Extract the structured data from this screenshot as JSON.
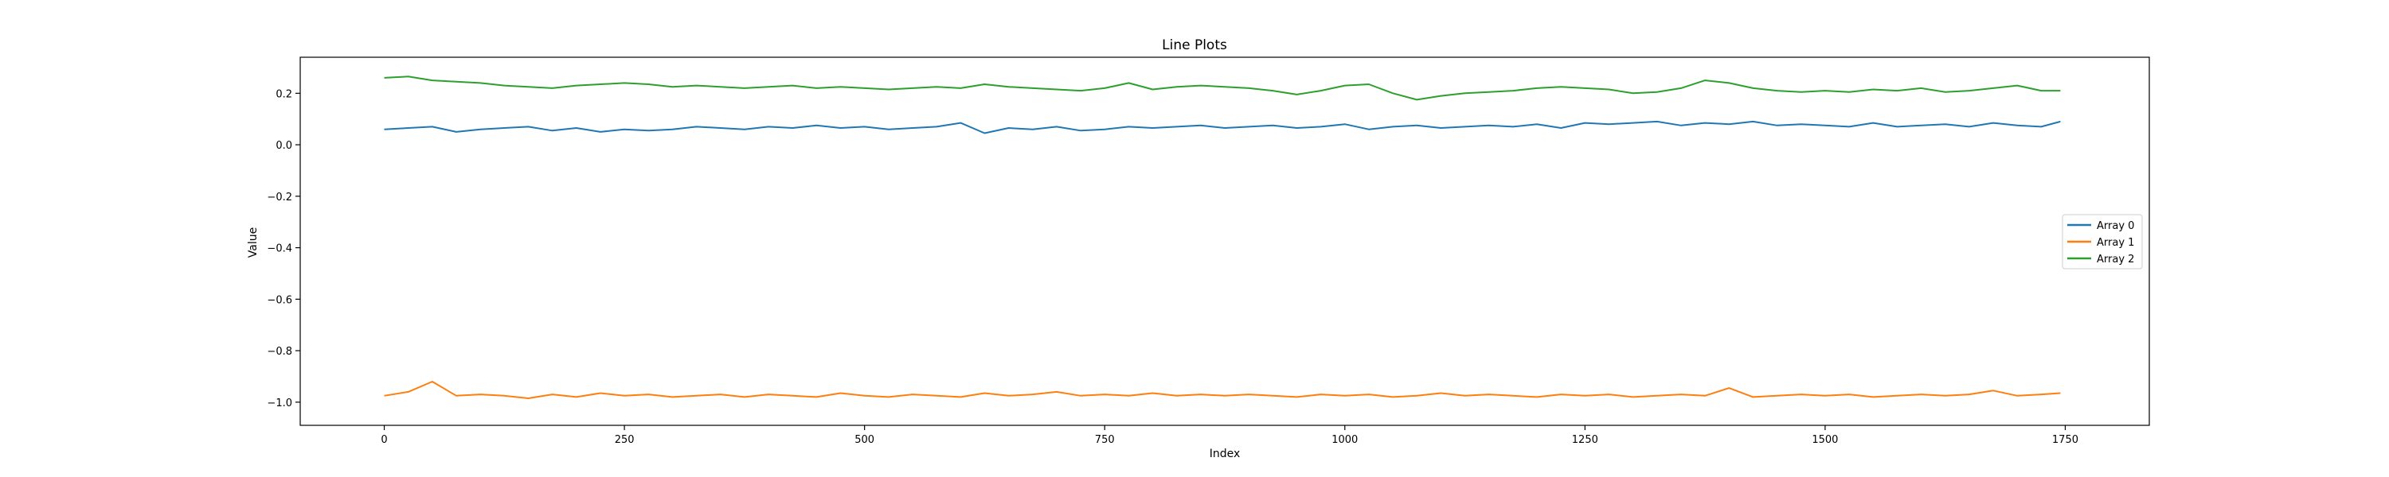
{
  "chart_data": {
    "type": "line",
    "title": "Line Plots",
    "xlabel": "Index",
    "ylabel": "Value",
    "xlim": [
      -87.5,
      1837.5
    ],
    "ylim": [
      -1.09,
      0.34
    ],
    "x_ticks": [
      0,
      250,
      500,
      750,
      1000,
      1250,
      1500,
      1750
    ],
    "y_ticks": [
      -1.0,
      -0.8,
      -0.6,
      -0.4,
      -0.2,
      0.0,
      0.2
    ],
    "grid": false,
    "legend_position": "center-right",
    "x": [
      0,
      25,
      50,
      75,
      100,
      125,
      150,
      175,
      200,
      225,
      250,
      275,
      300,
      325,
      350,
      375,
      400,
      425,
      450,
      475,
      500,
      525,
      550,
      575,
      600,
      625,
      650,
      675,
      700,
      725,
      750,
      775,
      800,
      825,
      850,
      875,
      900,
      925,
      950,
      975,
      1000,
      1025,
      1050,
      1075,
      1100,
      1125,
      1150,
      1175,
      1200,
      1225,
      1250,
      1275,
      1300,
      1325,
      1350,
      1375,
      1400,
      1425,
      1450,
      1475,
      1500,
      1525,
      1550,
      1575,
      1600,
      1625,
      1650,
      1675,
      1700,
      1725,
      1745
    ],
    "series": [
      {
        "name": "Array 0",
        "color": "#1f77b4",
        "values": [
          0.06,
          0.065,
          0.07,
          0.05,
          0.06,
          0.065,
          0.07,
          0.055,
          0.065,
          0.05,
          0.06,
          0.055,
          0.06,
          0.07,
          0.065,
          0.06,
          0.07,
          0.065,
          0.075,
          0.065,
          0.07,
          0.06,
          0.065,
          0.07,
          0.085,
          0.045,
          0.065,
          0.06,
          0.07,
          0.055,
          0.06,
          0.07,
          0.065,
          0.07,
          0.075,
          0.065,
          0.07,
          0.075,
          0.065,
          0.07,
          0.08,
          0.06,
          0.07,
          0.075,
          0.065,
          0.07,
          0.075,
          0.07,
          0.08,
          0.065,
          0.085,
          0.08,
          0.085,
          0.09,
          0.075,
          0.085,
          0.08,
          0.09,
          0.075,
          0.08,
          0.075,
          0.07,
          0.085,
          0.07,
          0.075,
          0.08,
          0.07,
          0.085,
          0.075,
          0.07,
          0.09
        ]
      },
      {
        "name": "Array 1",
        "color": "#ff7f0e",
        "values": [
          -0.975,
          -0.96,
          -0.92,
          -0.975,
          -0.97,
          -0.975,
          -0.985,
          -0.97,
          -0.98,
          -0.965,
          -0.975,
          -0.97,
          -0.98,
          -0.975,
          -0.97,
          -0.98,
          -0.97,
          -0.975,
          -0.98,
          -0.965,
          -0.975,
          -0.98,
          -0.97,
          -0.975,
          -0.98,
          -0.965,
          -0.975,
          -0.97,
          -0.96,
          -0.975,
          -0.97,
          -0.975,
          -0.965,
          -0.975,
          -0.97,
          -0.975,
          -0.97,
          -0.975,
          -0.98,
          -0.97,
          -0.975,
          -0.97,
          -0.98,
          -0.975,
          -0.965,
          -0.975,
          -0.97,
          -0.975,
          -0.98,
          -0.97,
          -0.975,
          -0.97,
          -0.98,
          -0.975,
          -0.97,
          -0.975,
          -0.945,
          -0.98,
          -0.975,
          -0.97,
          -0.975,
          -0.97,
          -0.98,
          -0.975,
          -0.97,
          -0.975,
          -0.97,
          -0.955,
          -0.975,
          -0.97,
          -0.965
        ]
      },
      {
        "name": "Array 2",
        "color": "#2ca02c",
        "values": [
          0.26,
          0.265,
          0.25,
          0.245,
          0.24,
          0.23,
          0.225,
          0.22,
          0.23,
          0.235,
          0.24,
          0.235,
          0.225,
          0.23,
          0.225,
          0.22,
          0.225,
          0.23,
          0.22,
          0.225,
          0.22,
          0.215,
          0.22,
          0.225,
          0.22,
          0.235,
          0.225,
          0.22,
          0.215,
          0.21,
          0.22,
          0.24,
          0.215,
          0.225,
          0.23,
          0.225,
          0.22,
          0.21,
          0.195,
          0.21,
          0.23,
          0.235,
          0.2,
          0.175,
          0.19,
          0.2,
          0.205,
          0.21,
          0.22,
          0.225,
          0.22,
          0.215,
          0.2,
          0.205,
          0.22,
          0.25,
          0.24,
          0.22,
          0.21,
          0.205,
          0.21,
          0.205,
          0.215,
          0.21,
          0.22,
          0.205,
          0.21,
          0.22,
          0.23,
          0.21,
          0.21
        ]
      }
    ]
  }
}
